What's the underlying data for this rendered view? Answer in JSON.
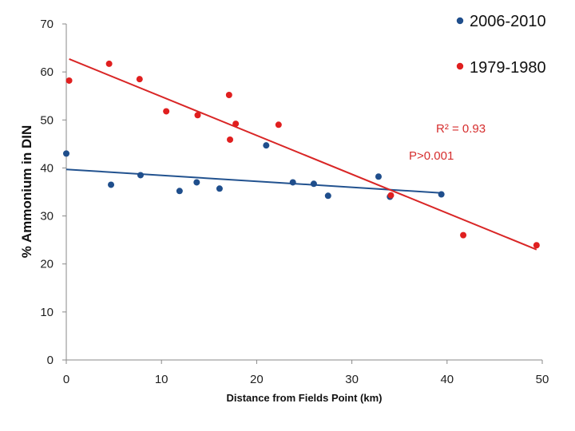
{
  "chart_data": {
    "type": "scatter",
    "title": "",
    "xlabel": "Distance from Fields Point (km)",
    "ylabel": "% Ammonium in DIN",
    "xlim": [
      0,
      50
    ],
    "ylim": [
      0,
      70
    ],
    "xticks": [
      "0",
      "10",
      "20",
      "30",
      "40",
      "50"
    ],
    "yticks": [
      "0",
      "10",
      "20",
      "30",
      "40",
      "50",
      "60",
      "70"
    ],
    "grid": false,
    "legend_position": "top-right",
    "series": [
      {
        "name": "2006-2010",
        "color": "#1f4e8c",
        "points": [
          {
            "x": 0.0,
            "y": 43.0
          },
          {
            "x": 4.7,
            "y": 36.5
          },
          {
            "x": 7.8,
            "y": 38.5
          },
          {
            "x": 11.9,
            "y": 35.2
          },
          {
            "x": 13.7,
            "y": 37.0
          },
          {
            "x": 16.1,
            "y": 35.7
          },
          {
            "x": 21.0,
            "y": 44.7
          },
          {
            "x": 23.8,
            "y": 37.0
          },
          {
            "x": 26.0,
            "y": 36.7
          },
          {
            "x": 27.5,
            "y": 34.2
          },
          {
            "x": 32.8,
            "y": 38.2
          },
          {
            "x": 34.0,
            "y": 34.0
          },
          {
            "x": 39.4,
            "y": 34.5
          }
        ],
        "trendline": {
          "x": [
            0,
            39.4
          ],
          "y": [
            39.7,
            34.8
          ]
        }
      },
      {
        "name": "1979-1980",
        "color": "#e01f1f",
        "points": [
          {
            "x": 0.3,
            "y": 58.2
          },
          {
            "x": 4.5,
            "y": 61.7
          },
          {
            "x": 7.7,
            "y": 58.5
          },
          {
            "x": 10.5,
            "y": 51.8
          },
          {
            "x": 13.8,
            "y": 51.0
          },
          {
            "x": 17.1,
            "y": 55.2
          },
          {
            "x": 17.8,
            "y": 49.2
          },
          {
            "x": 17.2,
            "y": 45.9
          },
          {
            "x": 22.3,
            "y": 49.0
          },
          {
            "x": 34.1,
            "y": 34.3
          },
          {
            "x": 41.7,
            "y": 26.0
          },
          {
            "x": 49.4,
            "y": 23.9
          }
        ],
        "trendline": {
          "x": [
            0.3,
            49.4
          ],
          "y": [
            62.7,
            23.0
          ]
        }
      }
    ],
    "annotations": [
      "R² = 0.93",
      "P>0.001"
    ]
  }
}
